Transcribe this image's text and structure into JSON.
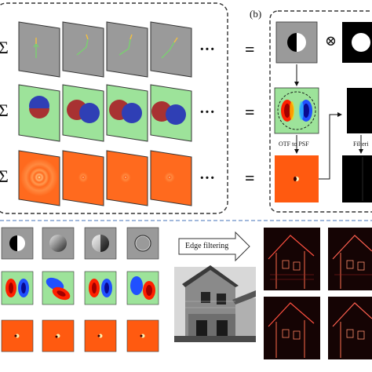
{
  "panel_a": {
    "sum_symbol": "Σ",
    "ellipsis": "···",
    "equals": "="
  },
  "panel_b": {
    "label": "(b)",
    "operator": "⊗",
    "otf_to_psf": "OTF to PSF",
    "filtering": "Filteri"
  },
  "bottom": {
    "edge_filtering": "Edge filtering"
  },
  "colors": {
    "gray_panel": "#9a9a9a",
    "green_panel": "#9de39a",
    "orange_panel": "#ff6a1e",
    "dark_red": "#a83232",
    "blue": "#2f3fb5",
    "dashed_border": "#333333",
    "blue_dashed_divider": "#6a8fc8"
  }
}
